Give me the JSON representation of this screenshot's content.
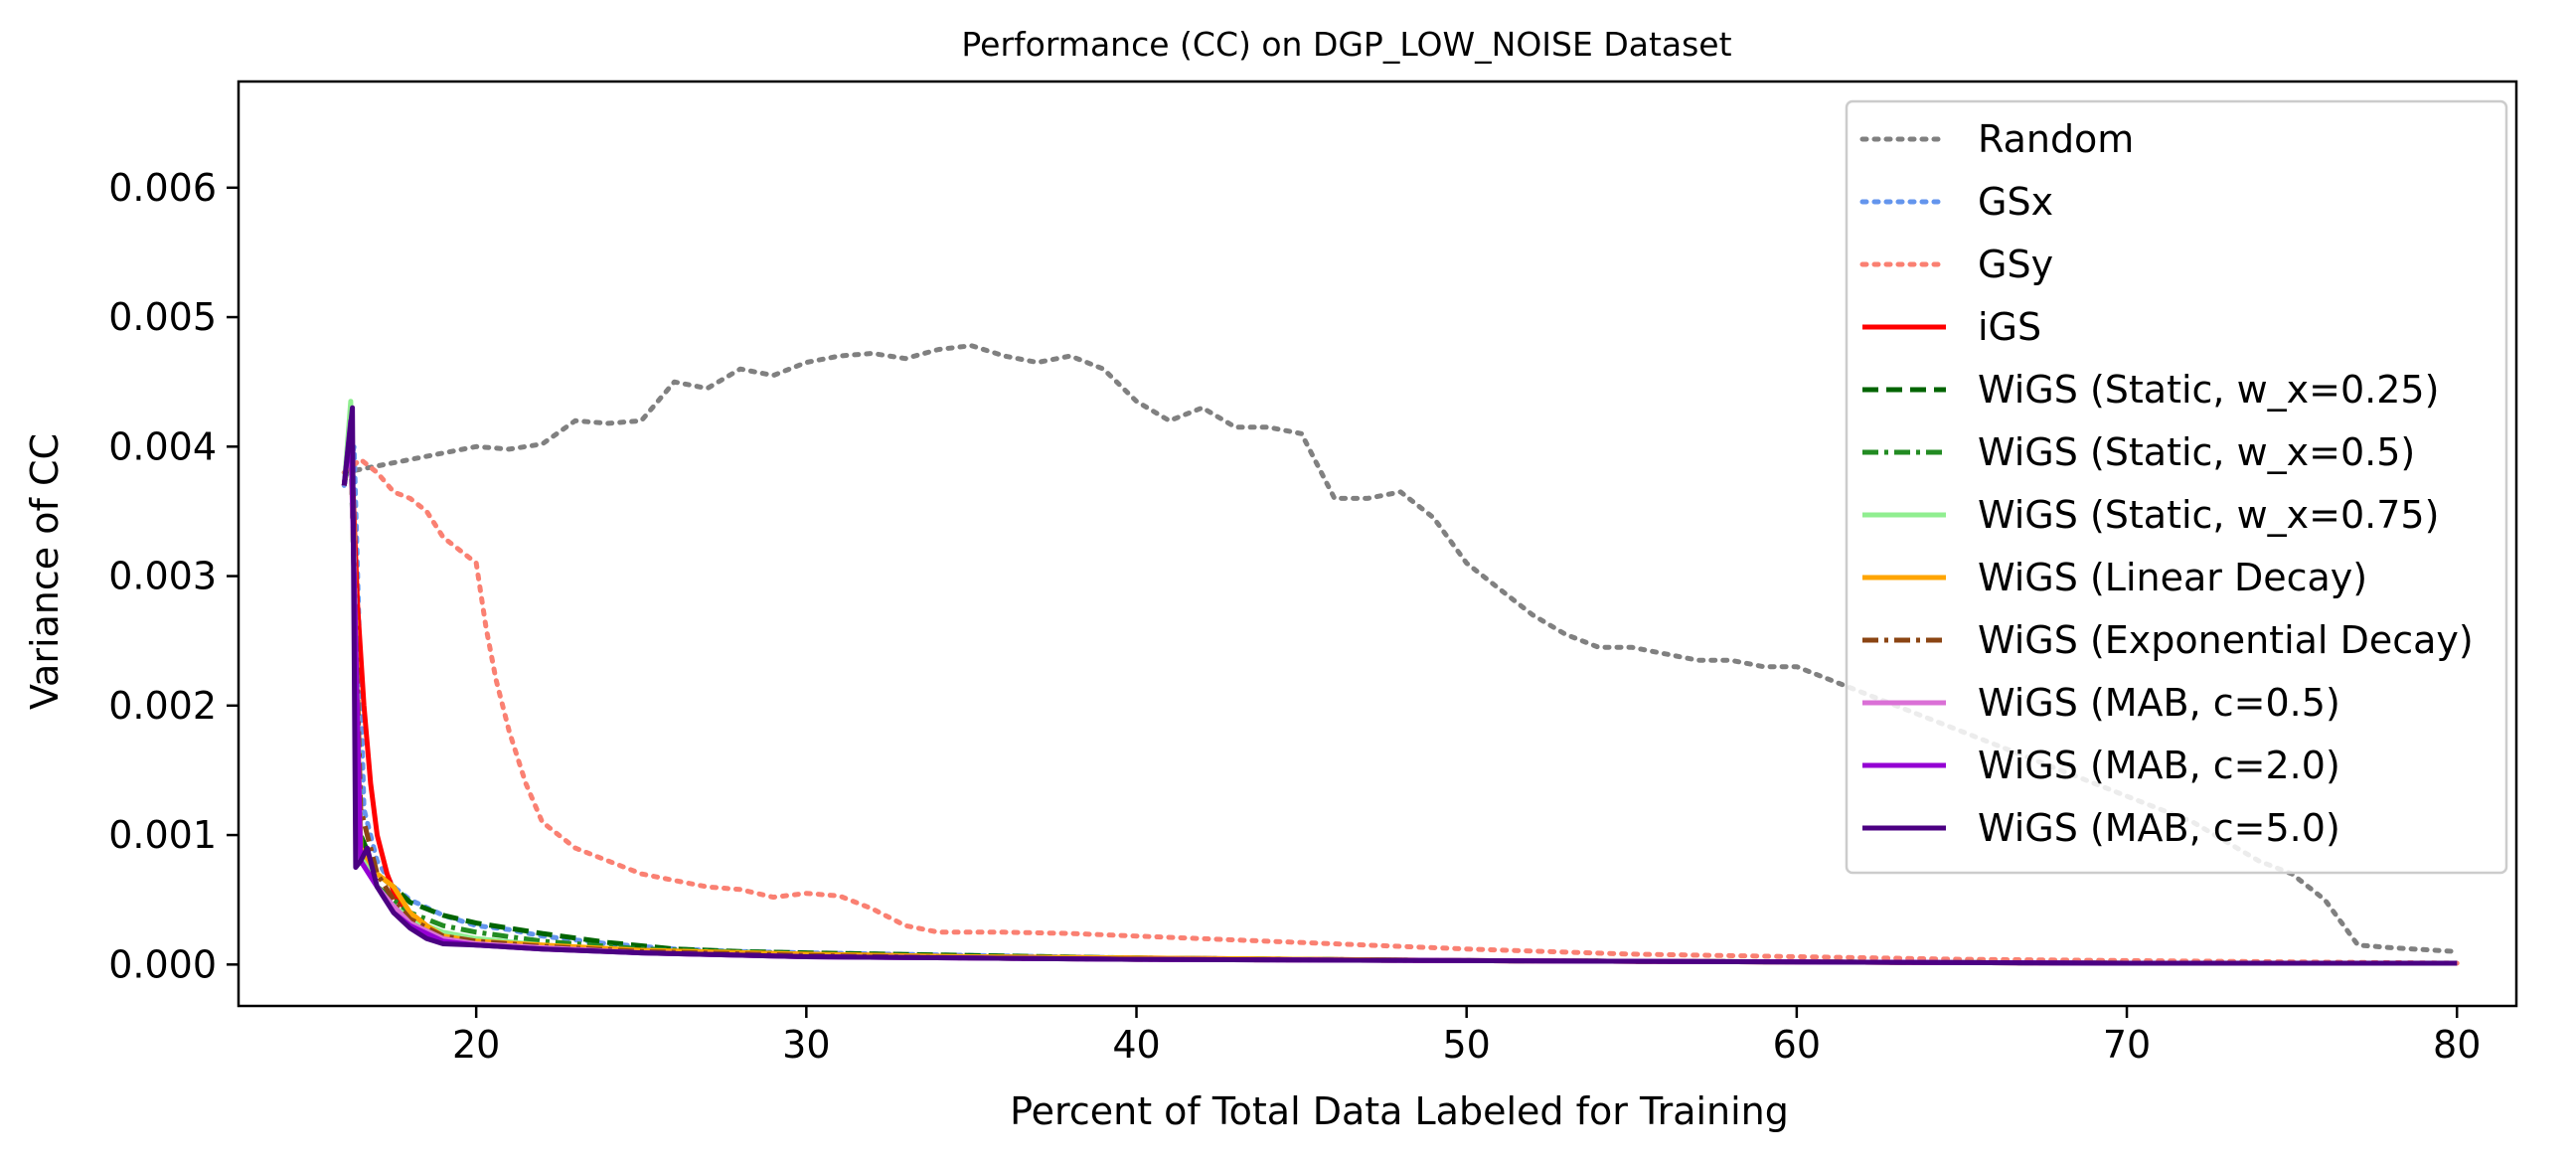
{
  "chart_data": {
    "type": "line",
    "title": "Performance (CC) on DGP_LOW_NOISE Dataset",
    "xlabel": "Percent of Total Data Labeled for Training",
    "ylabel": "Variance of CC",
    "xlim": [
      12.8,
      81.8
    ],
    "ylim": [
      -0.00032,
      0.00682
    ],
    "xticks": [
      20,
      30,
      40,
      50,
      60,
      70,
      80
    ],
    "xtick_labels": [
      "20",
      "30",
      "40",
      "50",
      "60",
      "70",
      "80"
    ],
    "yticks": [
      0,
      0.001,
      0.002,
      0.003,
      0.004,
      0.005,
      0.006
    ],
    "ytick_labels": [
      "0.000",
      "0.001",
      "0.002",
      "0.003",
      "0.004",
      "0.005",
      "0.006"
    ],
    "grid": false,
    "legend_position": "top-right",
    "series": [
      {
        "name": "Random",
        "color": "#808080",
        "dash": "dotted",
        "x": [
          16,
          17,
          18,
          19,
          20,
          21,
          22,
          23,
          24,
          25,
          26,
          27,
          28,
          29,
          30,
          31,
          32,
          33,
          34,
          35,
          36,
          37,
          38,
          39,
          40,
          41,
          42,
          43,
          44,
          45,
          46,
          47,
          48,
          49,
          50,
          51,
          52,
          53,
          54,
          55,
          56,
          57,
          58,
          59,
          60,
          62,
          64,
          66,
          68,
          70,
          72,
          74,
          75,
          76,
          77,
          78,
          80
        ],
        "y": [
          0.0038,
          0.00385,
          0.0039,
          0.00395,
          0.004,
          0.00398,
          0.00402,
          0.0042,
          0.00418,
          0.0042,
          0.0045,
          0.00445,
          0.0046,
          0.00455,
          0.00465,
          0.0047,
          0.00472,
          0.00468,
          0.00475,
          0.00478,
          0.0047,
          0.00465,
          0.0047,
          0.0046,
          0.00435,
          0.0042,
          0.0043,
          0.00415,
          0.00415,
          0.0041,
          0.0036,
          0.0036,
          0.00365,
          0.00345,
          0.0031,
          0.0029,
          0.0027,
          0.00255,
          0.00245,
          0.00245,
          0.0024,
          0.00235,
          0.00235,
          0.0023,
          0.0023,
          0.0021,
          0.0019,
          0.0017,
          0.0015,
          0.0013,
          0.0011,
          0.0008,
          0.0007,
          0.0005,
          0.00015,
          0.00013,
          0.0001
        ]
      },
      {
        "name": "GSx",
        "color": "#6495ED",
        "dash": "dotted",
        "x": [
          16,
          16.3,
          16.6,
          17,
          17.5,
          18,
          19,
          20,
          21,
          22,
          24,
          26,
          28,
          30,
          35,
          40,
          45,
          50,
          60,
          70,
          80
        ],
        "y": [
          0.0037,
          0.004,
          0.0012,
          0.0008,
          0.0006,
          0.0005,
          0.00038,
          0.0003,
          0.00027,
          0.00022,
          0.00016,
          0.00012,
          0.0001,
          9e-05,
          7e-05,
          5e-05,
          4e-05,
          3e-05,
          2e-05,
          1e-05,
          1e-05
        ]
      },
      {
        "name": "GSy",
        "color": "#FA8072",
        "dash": "dotted",
        "x": [
          16,
          16.5,
          17,
          17.5,
          18,
          18.5,
          19,
          19.5,
          20,
          20.3,
          20.6,
          21,
          21.5,
          22,
          23,
          24,
          25,
          26,
          27,
          28,
          29,
          30,
          31,
          32,
          33,
          34,
          36,
          38,
          40,
          42,
          44,
          46,
          50,
          55,
          60,
          65,
          70,
          75,
          80
        ],
        "y": [
          0.0038,
          0.0039,
          0.0038,
          0.00365,
          0.0036,
          0.0035,
          0.0033,
          0.0032,
          0.0031,
          0.0026,
          0.0022,
          0.0018,
          0.0014,
          0.0011,
          0.0009,
          0.0008,
          0.0007,
          0.00065,
          0.0006,
          0.00058,
          0.00052,
          0.00055,
          0.00053,
          0.00043,
          0.0003,
          0.00025,
          0.00025,
          0.00024,
          0.00022,
          0.0002,
          0.00018,
          0.00016,
          0.00012,
          8e-05,
          6e-05,
          4e-05,
          3e-05,
          2e-05,
          1e-05
        ]
      },
      {
        "name": "iGS",
        "color": "#FF0000",
        "dash": "solid",
        "x": [
          16,
          16.2,
          16.4,
          16.6,
          16.8,
          17,
          17.3,
          17.6,
          18,
          18.5,
          19,
          20,
          22,
          25,
          30,
          35,
          40,
          50,
          60,
          70,
          80
        ],
        "y": [
          0.0037,
          0.0041,
          0.0028,
          0.002,
          0.0014,
          0.001,
          0.0007,
          0.0005,
          0.0004,
          0.0003,
          0.00022,
          0.00018,
          0.00014,
          0.0001,
          8e-05,
          6e-05,
          5e-05,
          3e-05,
          2e-05,
          1e-05,
          1e-05
        ]
      },
      {
        "name": "WiGS (Static, w_x=0.25)",
        "color": "#006400",
        "dash": "dashed",
        "x": [
          16,
          16.2,
          16.5,
          17,
          17.5,
          18,
          19,
          20,
          21,
          22,
          24,
          26,
          28,
          30,
          35,
          40,
          45,
          50,
          60,
          70,
          80
        ],
        "y": [
          0.0037,
          0.004,
          0.001,
          0.0007,
          0.0006,
          0.00048,
          0.00038,
          0.00032,
          0.00028,
          0.00024,
          0.00017,
          0.00012,
          0.0001,
          9e-05,
          7e-05,
          5e-05,
          4e-05,
          3e-05,
          2e-05,
          1e-05,
          1e-05
        ]
      },
      {
        "name": "WiGS (Static, w_x=0.5)",
        "color": "#228B22",
        "dash": "dashdot",
        "x": [
          16,
          16.2,
          16.5,
          17,
          17.5,
          18,
          19,
          20,
          22,
          25,
          30,
          35,
          40,
          50,
          60,
          70,
          80
        ],
        "y": [
          0.0037,
          0.0041,
          0.0009,
          0.0006,
          0.0005,
          0.0004,
          0.0003,
          0.00025,
          0.00018,
          0.00012,
          8e-05,
          6e-05,
          5e-05,
          3e-05,
          2e-05,
          1e-05,
          1e-05
        ]
      },
      {
        "name": "WiGS (Static, w_x=0.75)",
        "color": "#90EE90",
        "dash": "solid",
        "x": [
          16,
          16.2,
          16.5,
          17,
          17.5,
          18,
          19,
          20,
          22,
          25,
          30,
          35,
          40,
          50,
          60,
          70,
          80
        ],
        "y": [
          0.0037,
          0.00435,
          0.0009,
          0.0006,
          0.00045,
          0.00035,
          0.00025,
          0.0002,
          0.00015,
          0.0001,
          7e-05,
          5e-05,
          4e-05,
          3e-05,
          2e-05,
          1e-05,
          1e-05
        ]
      },
      {
        "name": "WiGS (Linear Decay)",
        "color": "#FFA500",
        "dash": "solid",
        "x": [
          16,
          16.2,
          16.5,
          17,
          17.5,
          18,
          18.5,
          19,
          20,
          22,
          25,
          30,
          35,
          40,
          50,
          60,
          70,
          80
        ],
        "y": [
          0.0037,
          0.0041,
          0.0009,
          0.0007,
          0.0006,
          0.0004,
          0.0003,
          0.00022,
          0.00018,
          0.00015,
          0.00011,
          8e-05,
          6e-05,
          5e-05,
          3e-05,
          2e-05,
          1e-05,
          1e-05
        ]
      },
      {
        "name": "WiGS (Exponential Decay)",
        "color": "#8B4513",
        "dash": "dashdot",
        "x": [
          16,
          16.2,
          16.5,
          17,
          17.5,
          18,
          19,
          20,
          22,
          25,
          30,
          35,
          40,
          50,
          60,
          70,
          80
        ],
        "y": [
          0.0037,
          0.0041,
          0.0012,
          0.0007,
          0.0005,
          0.00035,
          0.00022,
          0.00018,
          0.00014,
          0.0001,
          7e-05,
          5e-05,
          4e-05,
          3e-05,
          2e-05,
          1e-05,
          1e-05
        ]
      },
      {
        "name": "WiGS (MAB, c=0.5)",
        "color": "#DA70D6",
        "dash": "solid",
        "x": [
          16,
          16.2,
          16.5,
          17,
          17.5,
          18,
          19,
          20,
          22,
          25,
          30,
          35,
          40,
          50,
          60,
          70,
          80
        ],
        "y": [
          0.0037,
          0.0041,
          0.0008,
          0.0006,
          0.00045,
          0.00032,
          0.0002,
          0.00016,
          0.00013,
          9e-05,
          6e-05,
          5e-05,
          4e-05,
          3e-05,
          2e-05,
          1e-05,
          1e-05
        ]
      },
      {
        "name": "WiGS (MAB, c=2.0)",
        "color": "#9400D3",
        "dash": "solid",
        "x": [
          16,
          16.2,
          16.5,
          17,
          17.5,
          18,
          19,
          20,
          22,
          25,
          30,
          35,
          40,
          50,
          60,
          70,
          80
        ],
        "y": [
          0.0037,
          0.0042,
          0.0008,
          0.0006,
          0.0004,
          0.0003,
          0.00018,
          0.00015,
          0.00012,
          9e-05,
          6e-05,
          5e-05,
          4e-05,
          3e-05,
          2e-05,
          1e-05,
          1e-05
        ]
      },
      {
        "name": "WiGS (MAB, c=5.0)",
        "color": "#4B0082",
        "dash": "solid",
        "x": [
          16,
          16.25,
          16.35,
          16.5,
          16.7,
          17,
          17.5,
          18,
          18.5,
          19,
          20,
          22,
          25,
          30,
          35,
          40,
          50,
          60,
          70,
          80
        ],
        "y": [
          0.0037,
          0.0043,
          0.00075,
          0.0008,
          0.0009,
          0.0006,
          0.0004,
          0.00028,
          0.0002,
          0.00016,
          0.00015,
          0.00012,
          9e-05,
          6e-05,
          5e-05,
          4e-05,
          3e-05,
          2e-05,
          1e-05,
          1e-05
        ]
      }
    ]
  }
}
